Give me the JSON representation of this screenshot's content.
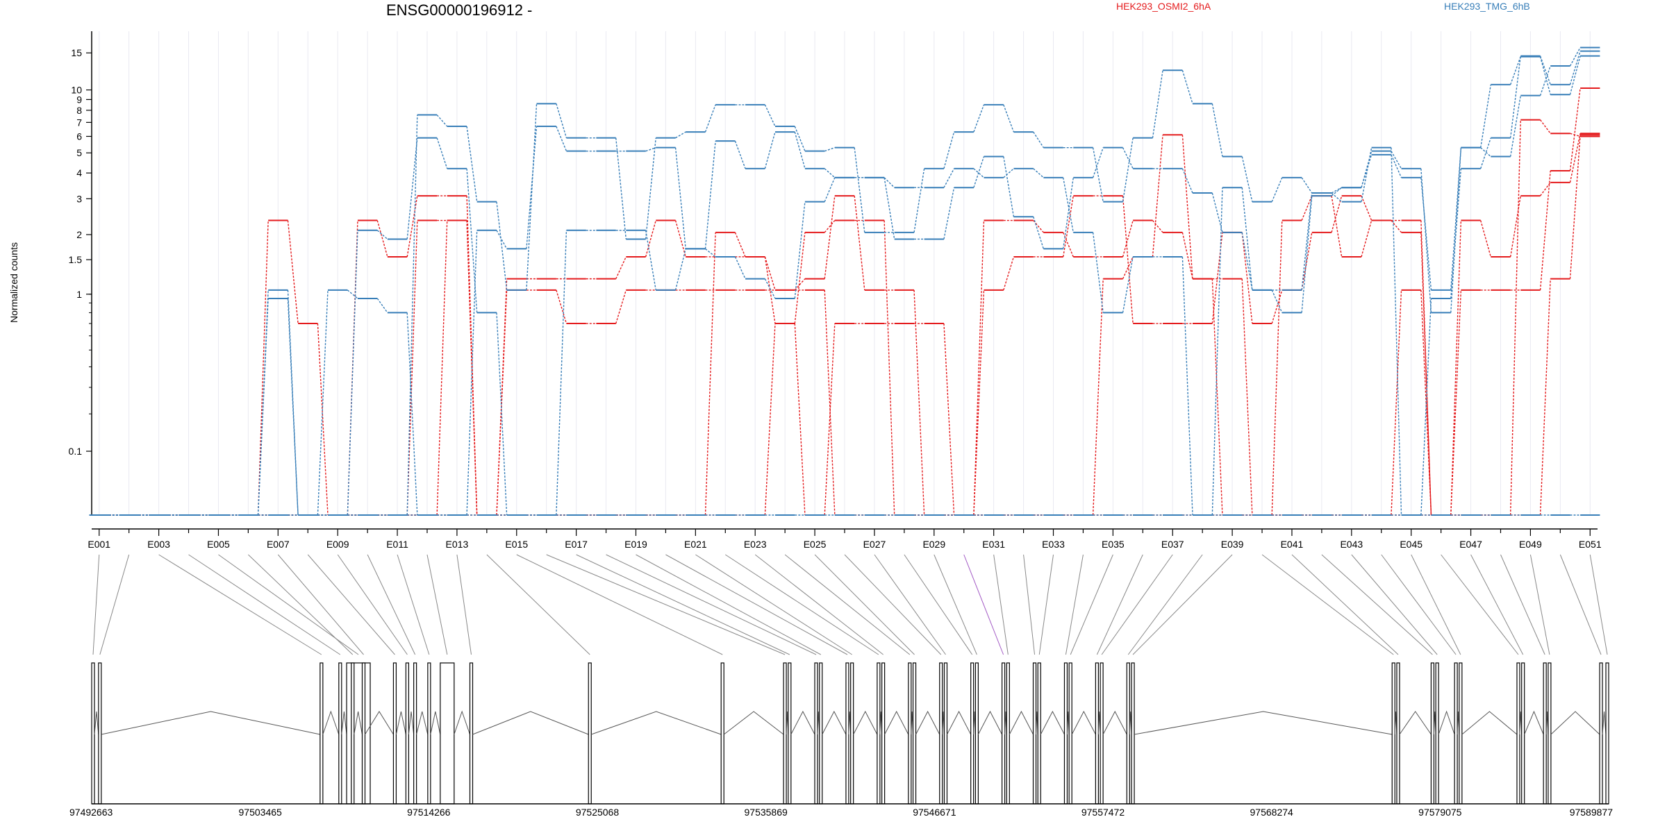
{
  "title": "ENSG00000196912 -",
  "legend": [
    {
      "name": "HEK293_OSMI2_6hA",
      "color": "#e41a1c"
    },
    {
      "name": "HEK293_TMG_6hB",
      "color": "#377eb8"
    }
  ],
  "ylabel": "Normalized counts",
  "chart_data": {
    "type": "line",
    "title": "ENSG00000196912 -",
    "ylabel": "Normalized counts",
    "xlabel": "",
    "yscale": "log(count+0.1)",
    "ylim": [
      0,
      19
    ],
    "yticks": [
      0.1,
      1,
      1.5,
      2,
      3,
      4,
      5,
      6,
      7,
      8,
      9,
      10,
      15
    ],
    "grid": "vertical",
    "legend_position": "top",
    "categories": [
      "E001",
      "E002",
      "E003",
      "E004",
      "E005",
      "E006",
      "E007",
      "E008",
      "E009",
      "E010",
      "E011",
      "E012",
      "E013",
      "E014",
      "E015",
      "E016",
      "E017",
      "E018",
      "E019",
      "E020",
      "E021",
      "E022",
      "E023",
      "E024",
      "E025",
      "E026",
      "E027",
      "E028",
      "E029",
      "E030",
      "E031",
      "E032",
      "E033",
      "E034",
      "E035",
      "E036",
      "E037",
      "E038",
      "E039",
      "E040",
      "E041",
      "E042",
      "E043",
      "E044",
      "E045",
      "E046",
      "E047",
      "E048",
      "E049",
      "E050",
      "E051"
    ],
    "highlighted_category": "E030",
    "series": [
      {
        "group": "HEK293_OSMI2_6hA",
        "color": "#e41a1c",
        "values": [
          0,
          0,
          0,
          0,
          0,
          0,
          2.35,
          0.7,
          0,
          0,
          0,
          0,
          2.35,
          0,
          0,
          0,
          0,
          0,
          0,
          0,
          0,
          0,
          0,
          0.7,
          0,
          0.7,
          0.7,
          0.7,
          0.7,
          0,
          0,
          0,
          0,
          0,
          0,
          0,
          0,
          0,
          0,
          0,
          0,
          0,
          0,
          0,
          0,
          0,
          0,
          0,
          0,
          1.2,
          6.1
        ]
      },
      {
        "group": "HEK293_OSMI2_6hA",
        "color": "#e41a1c",
        "values": [
          0,
          0,
          0,
          0,
          0,
          0,
          0,
          0,
          0,
          2.35,
          1.55,
          3.1,
          3.1,
          0,
          1.05,
          1.05,
          0.7,
          0.7,
          1.05,
          1.05,
          1.05,
          1.05,
          1.05,
          1.05,
          1.2,
          3.1,
          1.05,
          1.05,
          0,
          0,
          1.05,
          1.55,
          1.55,
          3.1,
          3.1,
          0.7,
          0.7,
          0.7,
          2.05,
          0.7,
          1.05,
          2.05,
          3.1,
          2.35,
          2.05,
          0,
          1.05,
          1.05,
          1.05,
          4.1,
          10.2
        ]
      },
      {
        "group": "HEK293_OSMI2_6hA",
        "color": "#e41a1c",
        "values": [
          0,
          0,
          0,
          0,
          0,
          0,
          0,
          0,
          0,
          0,
          0,
          2.35,
          2.35,
          0,
          1.2,
          1.2,
          1.2,
          1.2,
          1.55,
          2.35,
          1.55,
          1.55,
          1.55,
          0.7,
          2.05,
          2.35,
          2.35,
          0,
          0,
          0,
          2.35,
          2.35,
          2.05,
          1.55,
          1.55,
          2.35,
          2.05,
          1.2,
          0,
          0,
          2.35,
          3.1,
          1.55,
          2.35,
          2.35,
          0,
          2.35,
          1.55,
          3.1,
          3.6,
          6.2
        ]
      },
      {
        "group": "HEK293_OSMI2_6hA",
        "color": "#e41a1c",
        "values": [
          0,
          0,
          0,
          0,
          0,
          0,
          0,
          0,
          0,
          0,
          0,
          0,
          0,
          0,
          0,
          0,
          0,
          0,
          0,
          0,
          0,
          2.05,
          1.55,
          1.05,
          1.05,
          0,
          0,
          0,
          0,
          0,
          0,
          0,
          0,
          0,
          1.2,
          1.55,
          6.1,
          1.2,
          1.2,
          0,
          0,
          0,
          0,
          0,
          1.05,
          0,
          0,
          0,
          7.2,
          6.2,
          6.0
        ]
      },
      {
        "group": "HEK293_TMG_6hB",
        "color": "#377eb8",
        "values": [
          0,
          0,
          0,
          0,
          0,
          0,
          1.05,
          0,
          1.05,
          0.95,
          0.8,
          0,
          0,
          2.1,
          1.7,
          6.7,
          5.1,
          5.1,
          5.1,
          5.3,
          1.7,
          5.7,
          4.2,
          6.3,
          4.2,
          3.8,
          3.8,
          1.9,
          1.9,
          3.4,
          4.8,
          2.45,
          1.7,
          3.8,
          5.3,
          4.2,
          4.2,
          3.2,
          2.05,
          1.05,
          1.05,
          3.2,
          3.4,
          5.1,
          4.2,
          0.8,
          5.3,
          4.8,
          9.4,
          13.0,
          15.9
        ]
      },
      {
        "group": "HEK293_TMG_6hB",
        "color": "#377eb8",
        "values": [
          0,
          0,
          0,
          0,
          0,
          0,
          0.95,
          0,
          0,
          0,
          0,
          7.6,
          6.7,
          2.9,
          1.05,
          8.6,
          5.9,
          5.9,
          1.9,
          5.9,
          6.3,
          8.5,
          8.5,
          6.7,
          5.1,
          5.3,
          2.05,
          2.05,
          4.2,
          6.3,
          8.5,
          6.3,
          5.3,
          5.3,
          2.9,
          5.9,
          12.4,
          8.6,
          4.8,
          2.9,
          3.8,
          3.2,
          2.9,
          5.3,
          0,
          0.95,
          4.2,
          5.9,
          14.5,
          10.6,
          15.3
        ]
      },
      {
        "group": "HEK293_TMG_6hB",
        "color": "#377eb8",
        "values": [
          0,
          0,
          0,
          0,
          0,
          0,
          0,
          0,
          0,
          2.1,
          1.9,
          5.9,
          4.2,
          0.8,
          0,
          0,
          2.1,
          2.1,
          2.1,
          1.05,
          1.7,
          1.55,
          1.2,
          0.95,
          2.9,
          3.8,
          3.8,
          3.4,
          3.4,
          4.2,
          3.8,
          4.2,
          3.8,
          2.05,
          0.8,
          1.55,
          1.55,
          0,
          3.4,
          1.05,
          0.8,
          3.1,
          3.4,
          4.9,
          3.8,
          1.05,
          5.3,
          10.6,
          14.4,
          9.5,
          14.5
        ]
      },
      {
        "group": "HEK293_TMG_6hB",
        "color": "#377eb8",
        "values": [
          0,
          0,
          0,
          0,
          0,
          0,
          0,
          0,
          0,
          0,
          0,
          0,
          0,
          0,
          0,
          0,
          0,
          0,
          0,
          0,
          0,
          0,
          0,
          0,
          0,
          0,
          0,
          0,
          0,
          0,
          0,
          0,
          0,
          0,
          0,
          0,
          0,
          0,
          0,
          0,
          0,
          0,
          0,
          0,
          0,
          0,
          0,
          0,
          0,
          0,
          0
        ]
      }
    ],
    "exon_positions": [
      97492663,
      97493100,
      97507300,
      97508500,
      97509000,
      97509300,
      97510000,
      97512000,
      97512800,
      97513300,
      97514200,
      97515000,
      97516900,
      97524500,
      97533000,
      97537000,
      97537300,
      97539000,
      97539300,
      97541000,
      97541300,
      97543000,
      97543300,
      97545000,
      97545300,
      97547000,
      97547300,
      97549000,
      97549300,
      97551000,
      97551300,
      97553000,
      97553300,
      97555000,
      97555300,
      97557000,
      97557300,
      97559000,
      97559300,
      97576000,
      97576300,
      97578500,
      97578800,
      97580000,
      97580300,
      97584000,
      97584300,
      97585700,
      97586000,
      97589300,
      97589700
    ],
    "genomic_ticks": [
      "97492663",
      "97503465",
      "97514266",
      "97525068",
      "97535869",
      "97546671",
      "97557472",
      "97568274",
      "97579075",
      "97589877"
    ],
    "genomic_range": [
      97492663,
      97589877
    ]
  }
}
